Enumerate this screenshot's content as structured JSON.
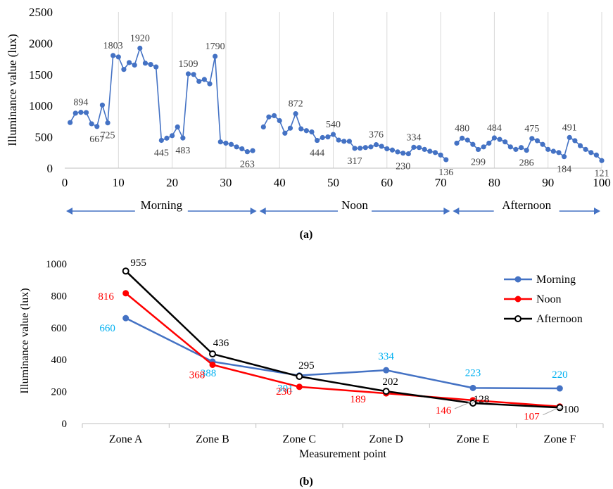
{
  "figure": {
    "panel_a_caption": "(a)",
    "panel_b_caption": "(b)"
  },
  "colors": {
    "blue": "#4472C4",
    "red": "#FF0000",
    "black": "#000000",
    "cyan_label": "#00B0F0",
    "grid": "#D9D9D9",
    "arrow": "#4472C4"
  },
  "chart_data": [
    {
      "type": "line",
      "xlabel": "",
      "ylabel": "Illuminance value (lux)",
      "xlim": [
        0,
        100
      ],
      "ylim": [
        0,
        2500
      ],
      "xticks": [
        0,
        10,
        20,
        30,
        40,
        50,
        60,
        70,
        80,
        90,
        100
      ],
      "yticks": [
        0,
        500,
        1000,
        1500,
        2000,
        2500
      ],
      "grid": "vertical at every 10",
      "series": [
        {
          "segment": "morning",
          "x": [
            1,
            2,
            3,
            4,
            5,
            6,
            7,
            8,
            9,
            10,
            11,
            12,
            13,
            14,
            15,
            16,
            17,
            18,
            19,
            20,
            21,
            22,
            23,
            24,
            25,
            26,
            27,
            28,
            29,
            30,
            31,
            32,
            33,
            34,
            35
          ],
          "y": [
            730,
            880,
            894,
            890,
            710,
            667,
            1010,
            725,
            1803,
            1780,
            1580,
            1690,
            1650,
            1920,
            1680,
            1660,
            1620,
            445,
            480,
            520,
            660,
            483,
            1509,
            1500,
            1390,
            1420,
            1350,
            1790,
            420,
            400,
            380,
            340,
            310,
            263,
            280
          ]
        },
        {
          "segment": "noon",
          "x": [
            37,
            38,
            39,
            40,
            41,
            42,
            43,
            44,
            45,
            46,
            47,
            48,
            49,
            50,
            51,
            52,
            53,
            54,
            55,
            56,
            57,
            58,
            59,
            60,
            61,
            62,
            63,
            64,
            65,
            66,
            67,
            68,
            69,
            70,
            71
          ],
          "y": [
            660,
            820,
            840,
            760,
            560,
            640,
            872,
            630,
            600,
            580,
            444,
            490,
            500,
            540,
            450,
            430,
            430,
            317,
            320,
            330,
            340,
            376,
            350,
            310,
            290,
            260,
            240,
            230,
            334,
            330,
            300,
            270,
            250,
            210,
            136
          ]
        },
        {
          "segment": "afternoon",
          "x": [
            73,
            74,
            75,
            76,
            77,
            78,
            79,
            80,
            81,
            82,
            83,
            84,
            85,
            86,
            87,
            88,
            89,
            90,
            91,
            92,
            93,
            94,
            95,
            96,
            97,
            98,
            99,
            100
          ],
          "y": [
            400,
            480,
            450,
            380,
            299,
            340,
            400,
            484,
            460,
            420,
            340,
            300,
            330,
            286,
            475,
            440,
            380,
            300,
            270,
            250,
            184,
            491,
            440,
            360,
            300,
            250,
            210,
            121
          ]
        }
      ],
      "data_labels": [
        {
          "x": 3,
          "y": 894,
          "text": "894",
          "pos": "above"
        },
        {
          "x": 6,
          "y": 667,
          "text": "667",
          "pos": "below"
        },
        {
          "x": 8,
          "y": 725,
          "text": "725",
          "pos": "below"
        },
        {
          "x": 9,
          "y": 1803,
          "text": "1803",
          "pos": "above"
        },
        {
          "x": 14,
          "y": 1920,
          "text": "1920",
          "pos": "above"
        },
        {
          "x": 18,
          "y": 445,
          "text": "445",
          "pos": "below"
        },
        {
          "x": 22,
          "y": 483,
          "text": "483",
          "pos": "below"
        },
        {
          "x": 23,
          "y": 1509,
          "text": "1509",
          "pos": "above"
        },
        {
          "x": 28,
          "y": 1790,
          "text": "1790",
          "pos": "above"
        },
        {
          "x": 34,
          "y": 263,
          "text": "263",
          "pos": "below"
        },
        {
          "x": 43,
          "y": 872,
          "text": "872",
          "pos": "above"
        },
        {
          "x": 47,
          "y": 444,
          "text": "444",
          "pos": "below"
        },
        {
          "x": 50,
          "y": 540,
          "text": "540",
          "pos": "above"
        },
        {
          "x": 54,
          "y": 317,
          "text": "317",
          "pos": "below"
        },
        {
          "x": 58,
          "y": 376,
          "text": "376",
          "pos": "above"
        },
        {
          "x": 63,
          "y": 230,
          "text": "230",
          "pos": "below"
        },
        {
          "x": 65,
          "y": 334,
          "text": "334",
          "pos": "above"
        },
        {
          "x": 71,
          "y": 136,
          "text": "136",
          "pos": "below"
        },
        {
          "x": 74,
          "y": 480,
          "text": "480",
          "pos": "above"
        },
        {
          "x": 77,
          "y": 299,
          "text": "299",
          "pos": "below"
        },
        {
          "x": 80,
          "y": 484,
          "text": "484",
          "pos": "above"
        },
        {
          "x": 86,
          "y": 286,
          "text": "286",
          "pos": "below"
        },
        {
          "x": 87,
          "y": 475,
          "text": "475",
          "pos": "above"
        },
        {
          "x": 93,
          "y": 184,
          "text": "184",
          "pos": "below"
        },
        {
          "x": 94,
          "y": 491,
          "text": "491",
          "pos": "above"
        },
        {
          "x": 100,
          "y": 121,
          "text": "121",
          "pos": "below"
        }
      ],
      "period_spans": [
        {
          "label": "Morning",
          "from": 0,
          "to": 36
        },
        {
          "label": "Noon",
          "from": 36,
          "to": 72
        },
        {
          "label": "Afternoon",
          "from": 72,
          "to": 100
        }
      ]
    },
    {
      "type": "line",
      "xlabel": "Measurement point",
      "ylabel": "Illuminance value (lux)",
      "categories": [
        "Zone A",
        "Zone B",
        "Zone C",
        "Zone D",
        "Zone E",
        "Zone F"
      ],
      "ylim": [
        0,
        1000
      ],
      "yticks": [
        0,
        200,
        400,
        600,
        800,
        1000
      ],
      "legend": "top-right",
      "series": [
        {
          "name": "Morning",
          "color": "#4472C4",
          "values": [
            660,
            388,
            301,
            334,
            223,
            220
          ],
          "label_color": "#00B0F0"
        },
        {
          "name": "Noon",
          "color": "#FF0000",
          "values": [
            816,
            368,
            230,
            189,
            146,
            107
          ],
          "label_color": "#FF0000"
        },
        {
          "name": "Afternoon",
          "color": "#000000",
          "values": [
            955,
            436,
            295,
            202,
            128,
            100
          ],
          "label_color": "#000000"
        }
      ]
    }
  ]
}
